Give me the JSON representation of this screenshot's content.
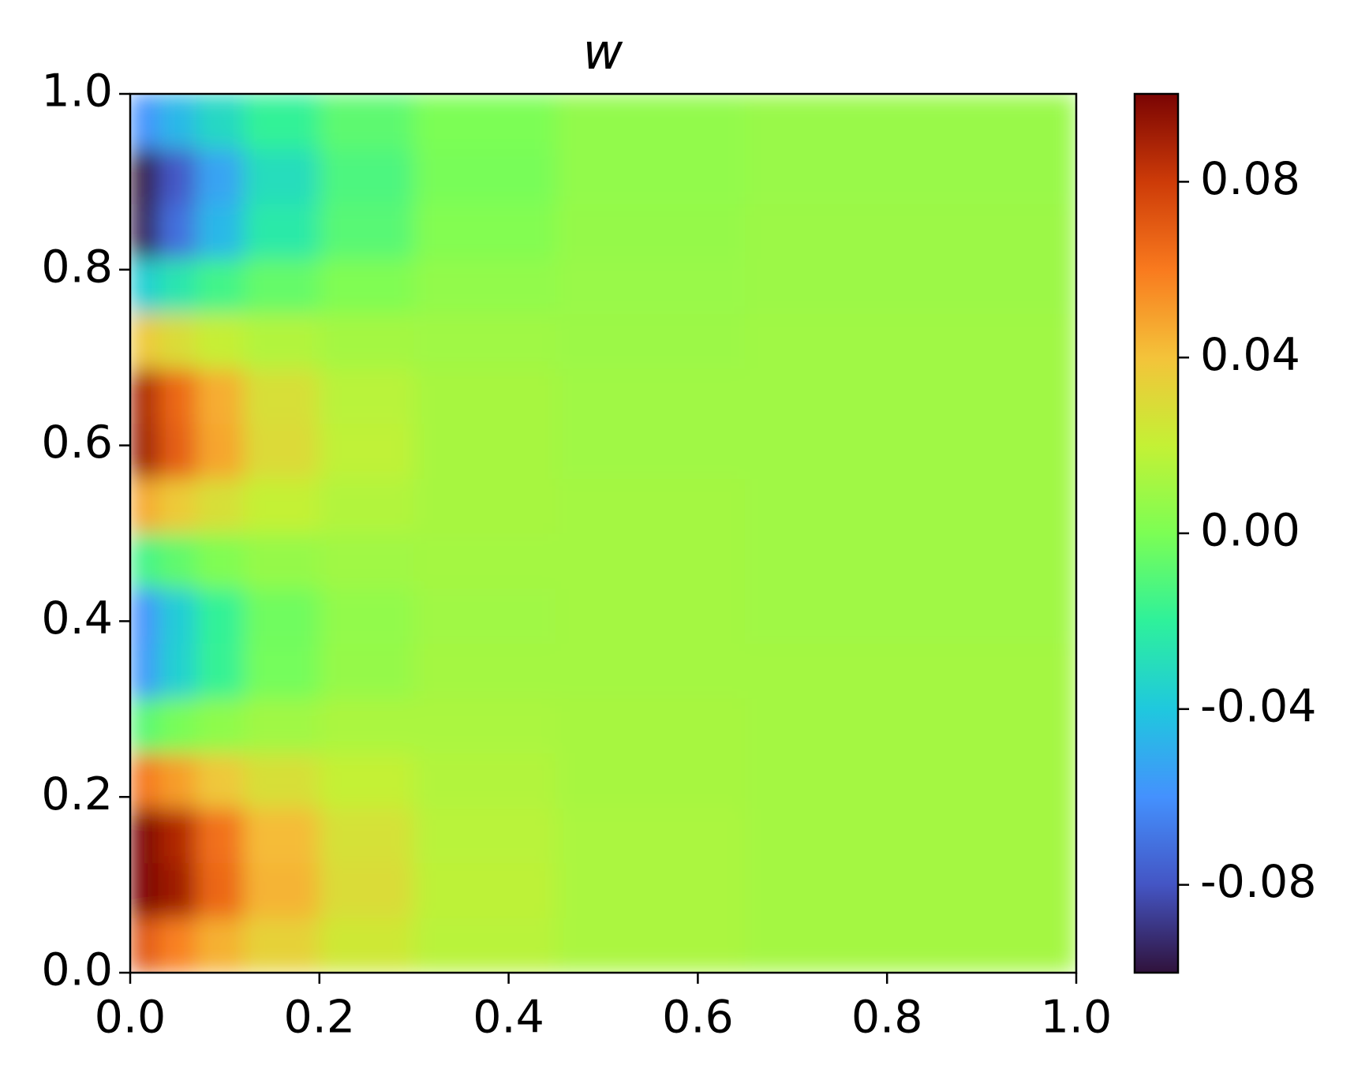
{
  "chart_data": {
    "type": "heatmap",
    "title": "w",
    "x_edges": [
      0,
      0.03,
      0.07,
      0.12,
      0.2,
      0.3,
      0.45,
      0.65,
      1.0
    ],
    "y_edges": [
      0,
      0.0625,
      0.125,
      0.1875,
      0.25,
      0.3125,
      0.375,
      0.4375,
      0.5,
      0.5625,
      0.625,
      0.6875,
      0.75,
      0.8125,
      0.875,
      0.9375,
      1.0
    ],
    "z": [
      [
        0.071,
        0.058,
        0.045,
        0.034,
        0.024,
        0.017,
        0.013,
        0.011
      ],
      [
        0.1,
        0.091,
        0.066,
        0.044,
        0.029,
        0.018,
        0.013,
        0.011
      ],
      [
        0.1,
        0.087,
        0.063,
        0.042,
        0.027,
        0.017,
        0.013,
        0.011
      ],
      [
        0.062,
        0.05,
        0.038,
        0.028,
        0.02,
        0.015,
        0.012,
        0.011
      ],
      [
        -0.009,
        -0.001,
        0.005,
        0.01,
        0.013,
        0.013,
        0.012,
        0.011
      ],
      [
        -0.058,
        -0.036,
        -0.018,
        -0.002,
        0.007,
        0.011,
        0.011,
        0.011
      ],
      [
        -0.06,
        -0.038,
        -0.019,
        -0.003,
        0.006,
        0.01,
        0.011,
        0.01
      ],
      [
        -0.015,
        -0.007,
        0.001,
        0.007,
        0.01,
        0.011,
        0.011,
        0.01
      ],
      [
        0.047,
        0.037,
        0.028,
        0.02,
        0.015,
        0.012,
        0.011,
        0.01
      ],
      [
        0.092,
        0.069,
        0.048,
        0.03,
        0.019,
        0.012,
        0.01,
        0.01
      ],
      [
        0.089,
        0.066,
        0.046,
        0.028,
        0.017,
        0.012,
        0.01,
        0.01
      ],
      [
        0.038,
        0.029,
        0.021,
        0.015,
        0.011,
        0.01,
        0.009,
        0.01
      ],
      [
        -0.037,
        -0.026,
        -0.015,
        -0.006,
        0.001,
        0.006,
        0.008,
        0.009
      ],
      [
        -0.097,
        -0.071,
        -0.046,
        -0.024,
        -0.009,
        0.002,
        0.007,
        0.009
      ],
      [
        -0.1,
        -0.079,
        -0.053,
        -0.03,
        -0.012,
        -0.001,
        0.006,
        0.008
      ],
      [
        -0.06,
        -0.046,
        -0.032,
        -0.019,
        -0.008,
        0.0,
        0.006,
        0.008
      ]
    ],
    "xlim": [
      0,
      1
    ],
    "ylim": [
      0,
      1
    ],
    "xticks": [
      {
        "value": 0,
        "label": "0.0"
      },
      0.2,
      0.4,
      0.6,
      0.8,
      {
        "value": 1,
        "label": "1.0"
      }
    ],
    "yticks": [
      {
        "value": 0,
        "label": "0.0"
      },
      0.2,
      0.4,
      0.6,
      0.8,
      {
        "value": 1,
        "label": "1.0"
      }
    ],
    "colorbar": {
      "clim": [
        -0.1,
        0.1
      ],
      "ticks": [
        -0.08,
        -0.04,
        {
          "value": 0,
          "label": "0.00"
        },
        0.04,
        0.08
      ]
    },
    "colormap": [
      "#30123b",
      "#4455c4",
      "#4491fe",
      "#1fc8de",
      "#2ef19b",
      "#7cfe54",
      "#c4f135",
      "#f4c33a",
      "#f97a1e",
      "#cd3b08",
      "#7a0403"
    ]
  }
}
